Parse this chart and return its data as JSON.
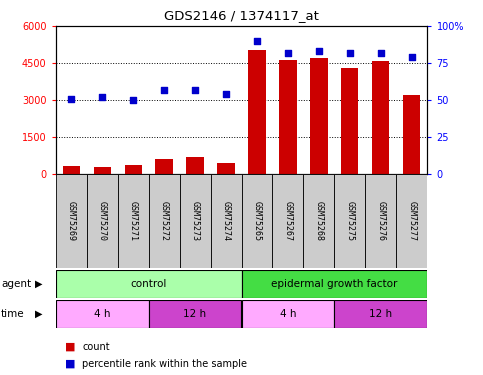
{
  "title": "GDS2146 / 1374117_at",
  "samples": [
    "GSM75269",
    "GSM75270",
    "GSM75271",
    "GSM75272",
    "GSM75273",
    "GSM75274",
    "GSM75265",
    "GSM75267",
    "GSM75268",
    "GSM75275",
    "GSM75276",
    "GSM75277"
  ],
  "counts": [
    350,
    310,
    370,
    620,
    720,
    480,
    5050,
    4620,
    4720,
    4320,
    4580,
    3200
  ],
  "percentile": [
    51,
    52,
    50,
    57,
    57,
    54,
    90,
    82,
    83,
    82,
    82,
    79
  ],
  "bar_color": "#cc0000",
  "dot_color": "#0000cc",
  "ylim_left": [
    0,
    6000
  ],
  "ylim_right": [
    0,
    100
  ],
  "yticks_left": [
    0,
    1500,
    3000,
    4500,
    6000
  ],
  "yticks_right": [
    0,
    25,
    50,
    75,
    100
  ],
  "agent_labels": [
    {
      "label": "control",
      "start": 0,
      "end": 6,
      "color": "#aaffaa"
    },
    {
      "label": "epidermal growth factor",
      "start": 6,
      "end": 12,
      "color": "#44dd44"
    }
  ],
  "time_labels": [
    {
      "label": "4 h",
      "start": 0,
      "end": 3,
      "color": "#ffaaff"
    },
    {
      "label": "12 h",
      "start": 3,
      "end": 6,
      "color": "#cc44cc"
    },
    {
      "label": "4 h",
      "start": 6,
      "end": 9,
      "color": "#ffaaff"
    },
    {
      "label": "12 h",
      "start": 9,
      "end": 12,
      "color": "#cc44cc"
    }
  ],
  "legend_count_color": "#cc0000",
  "legend_dot_color": "#0000cc",
  "background_color": "#ffffff",
  "plot_bg_color": "#ffffff"
}
